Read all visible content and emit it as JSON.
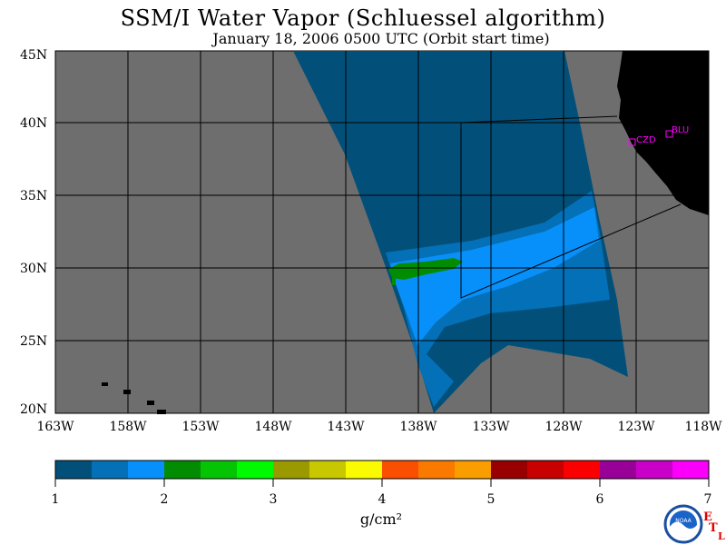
{
  "title": "SSM/I Water Vapor (Schluessel algorithm)",
  "subtitle": "January 18, 2006  0500 UTC  (Orbit start time)",
  "lat_labels": [
    "45N",
    "40N",
    "35N",
    "30N",
    "25N",
    "20N"
  ],
  "lon_labels": [
    "163W",
    "158W",
    "153W",
    "148W",
    "143W",
    "138W",
    "133W",
    "128W",
    "123W",
    "118W"
  ],
  "stations": [
    {
      "name": "CZD",
      "lat": 38.6,
      "lon": -123.2
    },
    {
      "name": "BLU",
      "lat": 39.3,
      "lon": -120.8
    }
  ],
  "colorbar": {
    "unit": "g/cm²",
    "tick_labels": [
      "1",
      "2",
      "3",
      "4",
      "5",
      "6",
      "7"
    ],
    "colors": [
      "#02507a",
      "#0470b7",
      "#0890fa",
      "#028c02",
      "#04c404",
      "#00fa00",
      "#9a9a00",
      "#c8c800",
      "#fafa00",
      "#fa4e00",
      "#fa7a00",
      "#fa9e00",
      "#980000",
      "#c80000",
      "#fa0000",
      "#980098",
      "#c800c8",
      "#fa00fa"
    ]
  },
  "colors": {
    "no_data": "#6e6e6e",
    "land": "#000000",
    "station": "#ff00ff"
  },
  "logo": {
    "text": "NOAA",
    "etl_letters": [
      "E",
      "T",
      "L"
    ]
  }
}
